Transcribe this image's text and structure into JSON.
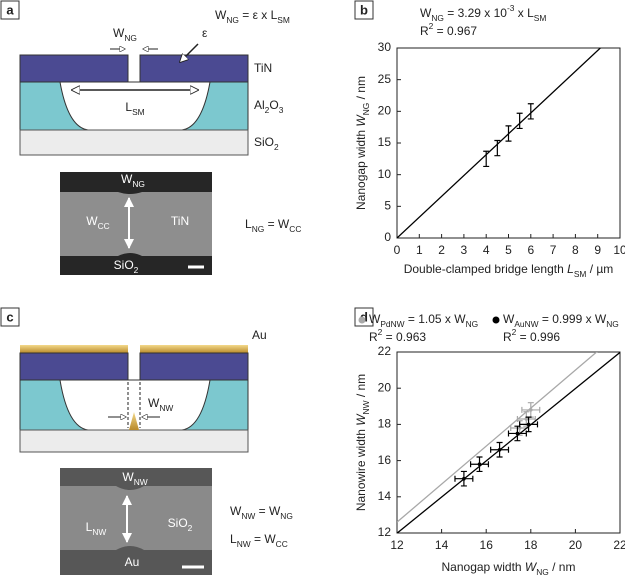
{
  "panel_labels": [
    "a",
    "b",
    "c",
    "d"
  ],
  "diagram_a": {
    "formula": [
      "W",
      {
        "sub": "NG"
      },
      " = ε x L",
      {
        "sub": "SM"
      }
    ],
    "gap_label": [
      "W",
      {
        "sub": "NG"
      }
    ],
    "epsilon": "ε",
    "cavity_label": [
      "L",
      {
        "sub": "SM"
      }
    ],
    "layers": [
      "TiN",
      [
        "Al",
        {
          "sub": "2"
        },
        "O",
        {
          "sub": "3"
        }
      ],
      [
        "SiO",
        {
          "sub": "2"
        }
      ]
    ],
    "sem": {
      "top": [
        "W",
        {
          "sub": "NG"
        }
      ],
      "left": [
        "W",
        {
          "sub": "CC"
        }
      ],
      "right": "TiN",
      "bottom": [
        "SiO",
        {
          "sub": "2"
        }
      ]
    },
    "relation": [
      "L",
      {
        "sub": "NG"
      },
      " = W",
      {
        "sub": "CC"
      }
    ]
  },
  "diagram_c": {
    "top_layer": "Au",
    "cavity_label": [
      "W",
      {
        "sub": "NW"
      }
    ],
    "sem": {
      "top": [
        "W",
        {
          "sub": "NW"
        }
      ],
      "left": [
        "L",
        {
          "sub": "NW"
        }
      ],
      "right": [
        "SiO",
        {
          "sub": "2"
        }
      ],
      "bottom": "Au"
    },
    "relations": [
      [
        "W",
        {
          "sub": "NW"
        },
        " = W",
        {
          "sub": "NG"
        }
      ],
      [
        "L",
        {
          "sub": "NW"
        },
        " = W",
        {
          "sub": "CC"
        }
      ]
    ]
  },
  "chart_data": [
    {
      "type": "scatter",
      "legend": false,
      "markers": false,
      "xlabel": [
        "Double-clamped bridge length ",
        {
          "i": "L"
        },
        {
          "sub": "SM"
        },
        " / µm"
      ],
      "ylabel": [
        "Nanogap width ",
        {
          "i": "W"
        },
        {
          "sub": "NG"
        },
        " / nm"
      ],
      "xlim": [
        0,
        10
      ],
      "ylim": [
        0,
        30
      ],
      "xticks": [
        0,
        1,
        2,
        3,
        4,
        5,
        6,
        7,
        8,
        9,
        10
      ],
      "yticks": [
        0,
        5,
        10,
        15,
        20,
        25,
        30
      ],
      "series": [
        {
          "color": "#000000",
          "x": [
            4,
            4.5,
            5,
            5.5,
            6
          ],
          "values": [
            12.5,
            14.2,
            16.5,
            18.5,
            20
          ],
          "errors": [
            1.2,
            1.2,
            1.2,
            1.2,
            1.2
          ],
          "fit": [
            "W",
            {
              "sub": "NG"
            },
            " = ",
            3.29,
            " x 10",
            {
              "sup": "-3"
            },
            " x L",
            {
              "sub": "SM"
            }
          ],
          "r2": [
            "R",
            {
              "sup": "2"
            },
            " = 0.967"
          ]
        }
      ]
    },
    {
      "type": "scatter",
      "legend": true,
      "markers": true,
      "xlabel": [
        "Nanogap width ",
        {
          "i": "W"
        },
        {
          "sub": "NG"
        },
        " / nm"
      ],
      "ylabel": [
        "Nanowire width ",
        {
          "i": "W"
        },
        {
          "sub": "NW"
        },
        " / nm"
      ],
      "xlim": [
        12,
        22
      ],
      "ylim": [
        12,
        22
      ],
      "xticks": [
        12,
        14,
        16,
        18,
        20,
        22
      ],
      "yticks": [
        12,
        14,
        16,
        18,
        20,
        22
      ],
      "series": [
        {
          "color": "#a8a8a8",
          "x": [
            17.5,
            17.8,
            18
          ],
          "values": [
            17.8,
            18.3,
            18.8
          ],
          "errors": [
            0.4,
            0.4,
            0.4
          ],
          "x_errors": [
            0.4,
            0.4,
            0.4
          ],
          "fit": [
            "W",
            {
              "sub": "PdNW"
            },
            " = ",
            1.05,
            " x W",
            {
              "sub": "NG"
            }
          ],
          "r2": [
            "R",
            {
              "sup": "2"
            },
            " = 0.963"
          ]
        },
        {
          "color": "#000000",
          "x": [
            15,
            15.7,
            16.6,
            17.4,
            17.9
          ],
          "values": [
            15,
            15.8,
            16.6,
            17.5,
            18
          ],
          "errors": [
            0.4,
            0.4,
            0.4,
            0.4,
            0.4
          ],
          "x_errors": [
            0.4,
            0.4,
            0.4,
            0.4,
            0.4
          ],
          "fit": [
            "W",
            {
              "sub": "AuNW"
            },
            " = ",
            0.999,
            " x W",
            {
              "sub": "NG"
            }
          ],
          "r2": [
            "R",
            {
              "sup": "2"
            },
            " = 0.996"
          ]
        }
      ]
    }
  ]
}
